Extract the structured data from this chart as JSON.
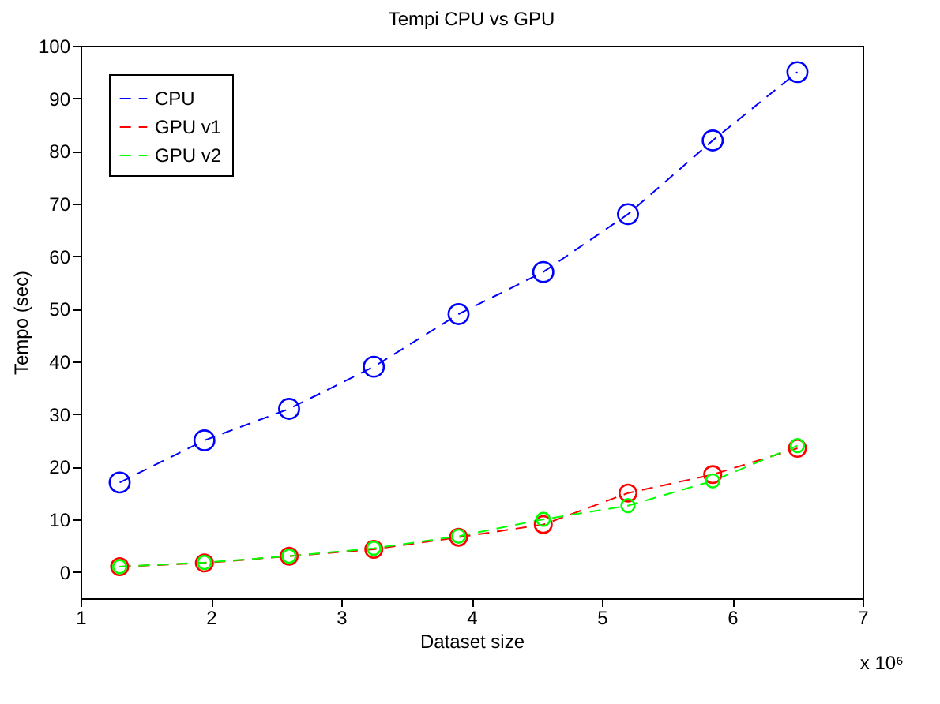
{
  "chart_data": {
    "type": "line",
    "title": "Tempi CPU vs GPU",
    "xlabel": "Dataset size",
    "ylabel": "Tempo (sec)",
    "annotations": [
      "x 10⁶"
    ],
    "x": [
      1.3,
      1.95,
      2.6,
      3.25,
      3.9,
      4.55,
      5.2,
      5.85,
      6.5
    ],
    "series": [
      {
        "name": "CPU",
        "color": "#0000ff",
        "values": [
          17,
          25,
          31,
          39,
          49,
          57,
          68,
          82,
          95
        ]
      },
      {
        "name": "GPU v1",
        "color": "#ff0000",
        "values": [
          1,
          1.7,
          3,
          4.3,
          6.6,
          9,
          15,
          18.5,
          23.5
        ]
      },
      {
        "name": "GPU v2",
        "color": "#00ff00",
        "values": [
          1,
          1.8,
          3,
          4.5,
          6.8,
          10,
          12.6,
          17.3,
          24
        ]
      }
    ],
    "xlim": [
      1,
      7
    ],
    "ylim": [
      -5,
      100
    ],
    "xticks": [
      1,
      2,
      3,
      4,
      5,
      6,
      7
    ],
    "yticks": [
      0,
      10,
      20,
      30,
      40,
      50,
      60,
      70,
      80,
      90,
      100
    ],
    "legend": "top left",
    "marker": "circle",
    "line_style": "dashed",
    "grid": false
  }
}
